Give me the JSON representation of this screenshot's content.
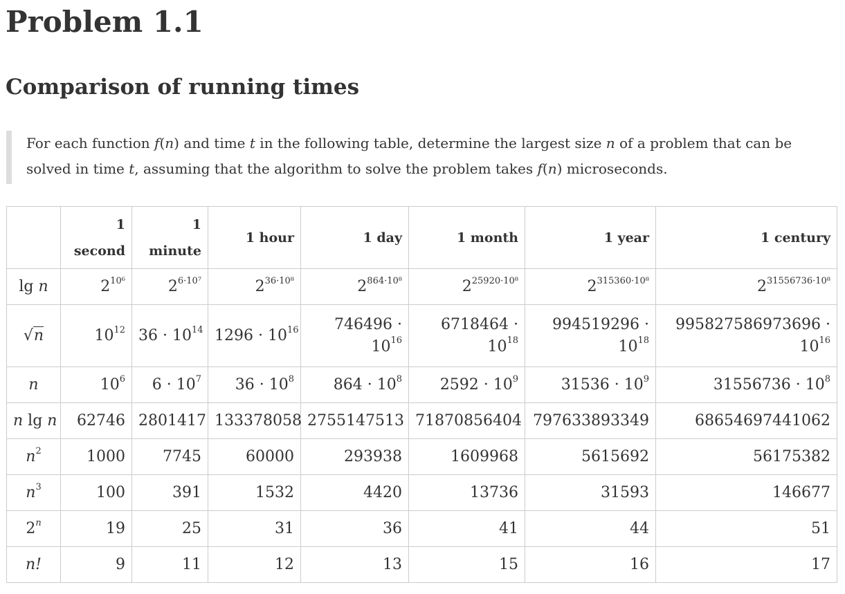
{
  "title": "Problem 1.1",
  "subtitle": "Comparison of running times",
  "intro": {
    "p1": "For each function",
    "f": "f",
    "n": "n",
    "p2": "and time",
    "t": "t",
    "p3": "in the following table, determine the largest size",
    "p4": "of a problem that can be",
    "p5": "solved in time",
    "p6": ", assuming that the algorithm to solve the problem takes",
    "p7": "microseconds."
  },
  "table": {
    "headers": [
      "",
      "1 second",
      "1 minute",
      "1 hour",
      "1 day",
      "1 month",
      "1 year",
      "1 century"
    ],
    "rows": [
      {
        "func": "lg n",
        "cells": [
          {
            "base": "2",
            "exp": "10⁶"
          },
          {
            "base": "2",
            "exp": "6·10⁷"
          },
          {
            "base": "2",
            "exp": "36·10⁸"
          },
          {
            "base": "2",
            "exp": "864·10⁸"
          },
          {
            "base": "2",
            "exp": "25920·10⁸"
          },
          {
            "base": "2",
            "exp": "315360·10⁸"
          },
          {
            "base": "2",
            "exp": "31556736·10⁸"
          }
        ]
      },
      {
        "func": "n",
        "cells": [
          {
            "base": "10",
            "exp": "12"
          },
          {
            "base": "36 · 10",
            "exp": "14"
          },
          {
            "base": "1296 · 10",
            "exp": "16"
          },
          {
            "base": "746496 · 10",
            "exp": "16"
          },
          {
            "base": "6718464 · 10",
            "exp": "18"
          },
          {
            "base": "994519296 · 10",
            "exp": "18"
          },
          {
            "base": "995827586973696 · 10",
            "exp": "16"
          }
        ]
      },
      {
        "func": "n",
        "cells": [
          {
            "base": "10",
            "exp": "6"
          },
          {
            "base": "6 · 10",
            "exp": "7"
          },
          {
            "base": "36 · 10",
            "exp": "8"
          },
          {
            "base": "864 · 10",
            "exp": "8"
          },
          {
            "base": "2592 · 10",
            "exp": "9"
          },
          {
            "base": "31536 · 10",
            "exp": "9"
          },
          {
            "base": "31556736 · 10",
            "exp": "8"
          }
        ]
      },
      {
        "func": "n lg n",
        "cells": [
          "62746",
          "2801417",
          "133378058",
          "2755147513",
          "71870856404",
          "797633893349",
          "68654697441062"
        ]
      },
      {
        "func_base": "n",
        "func_exp": "2",
        "cells": [
          "1000",
          "7745",
          "60000",
          "293938",
          "1609968",
          "5615692",
          "56175382"
        ]
      },
      {
        "func_base": "n",
        "func_exp": "3",
        "cells": [
          "100",
          "391",
          "1532",
          "4420",
          "13736",
          "31593",
          "146677"
        ]
      },
      {
        "func_base": "2",
        "func_exp": "n",
        "cells": [
          "19",
          "25",
          "31",
          "36",
          "41",
          "44",
          "51"
        ]
      },
      {
        "func": "n!",
        "cells": [
          "9",
          "11",
          "12",
          "13",
          "15",
          "16",
          "17"
        ]
      }
    ]
  }
}
